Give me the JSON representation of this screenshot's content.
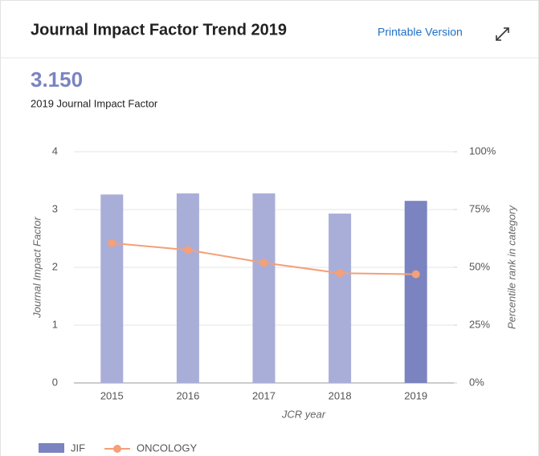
{
  "header": {
    "title": "Journal Impact Factor Trend 2019",
    "link": "Printable Version"
  },
  "summary": {
    "value": "3.150",
    "label": "2019 Journal Impact Factor"
  },
  "chart_data": {
    "type": "bar",
    "categories": [
      "2015",
      "2016",
      "2017",
      "2018",
      "2019"
    ],
    "series": [
      {
        "name": "JIF",
        "type": "bar",
        "color": "#7b84c0",
        "colors": [
          "#a9aed8",
          "#a9aed8",
          "#a9aed8",
          "#a9aed8",
          "#7b84c0"
        ],
        "values": [
          3.26,
          3.28,
          3.28,
          2.93,
          3.15
        ]
      },
      {
        "name": "ONCOLOGY",
        "type": "line",
        "axis": "y2",
        "color": "#f4a078",
        "values": [
          60.5,
          57.5,
          52,
          47.5,
          47
        ]
      }
    ],
    "ylabel": "Journal Impact Factor",
    "y2label": "Percentile rank in category",
    "xlabel": "JCR year",
    "ylim": [
      0,
      4
    ],
    "yticks": [
      0,
      1,
      2,
      3,
      4
    ],
    "y2lim": [
      0,
      100
    ],
    "y2ticks": [
      {
        "value": 0,
        "label": "0%"
      },
      {
        "value": 25,
        "label": "25%"
      },
      {
        "value": 50,
        "label": "50%"
      },
      {
        "value": 75,
        "label": "75%"
      },
      {
        "value": 100,
        "label": "100%"
      }
    ],
    "grid": true,
    "legend": "bottom-left"
  }
}
